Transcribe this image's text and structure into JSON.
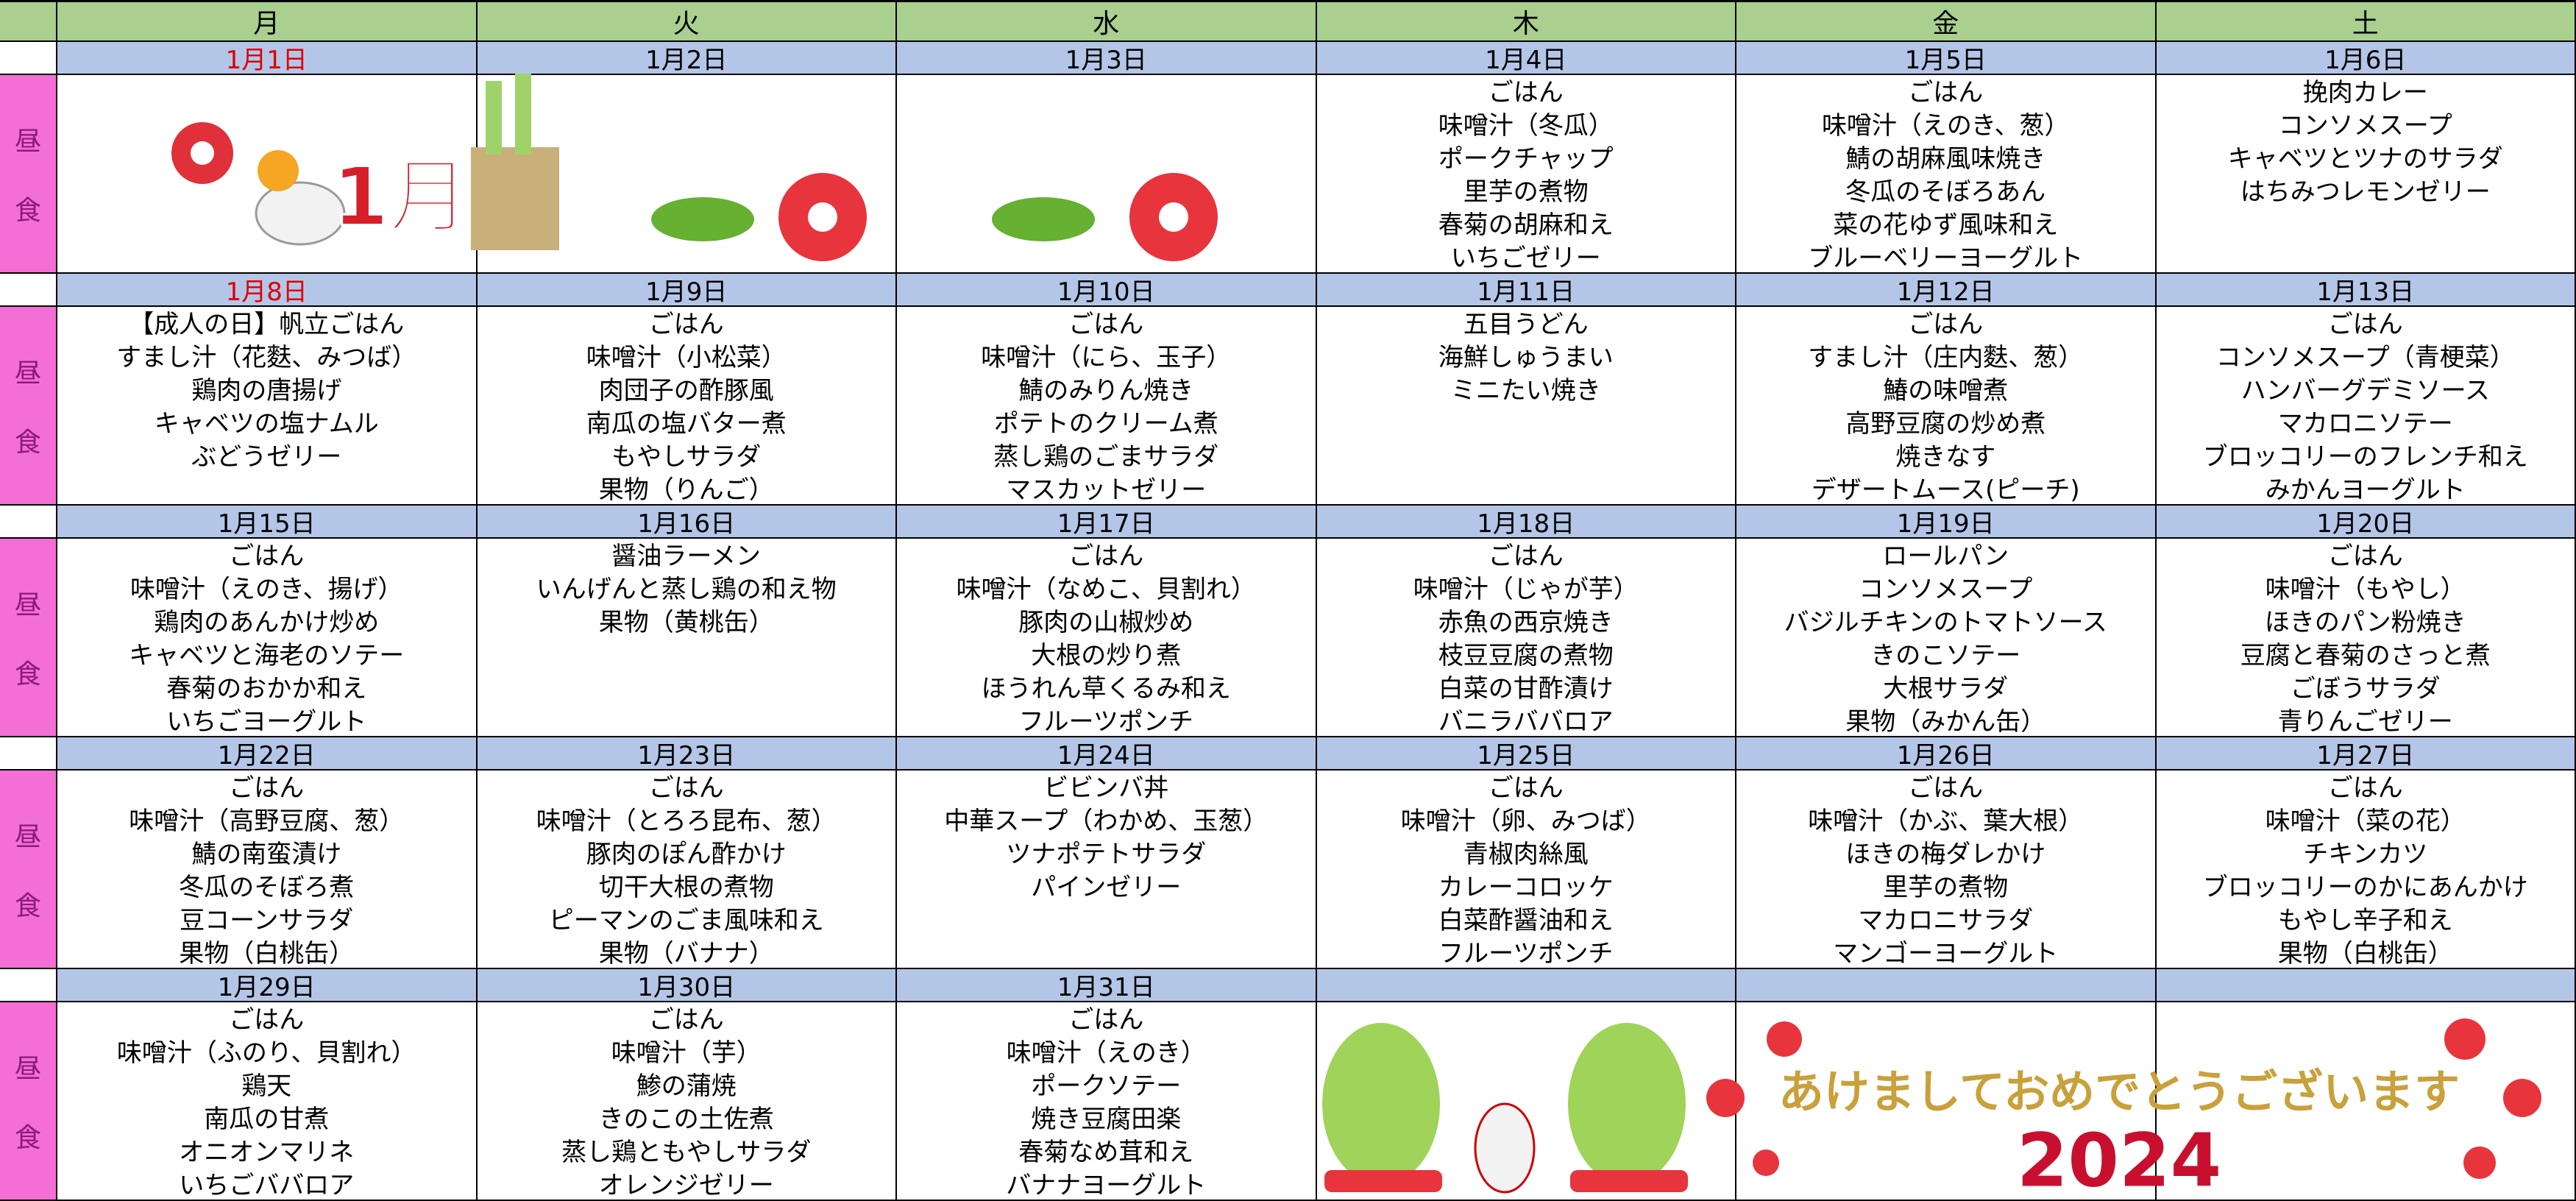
{
  "weekdays": [
    "月",
    "火",
    "水",
    "木",
    "金",
    "土"
  ],
  "lunch_label": [
    "昼",
    "食"
  ],
  "decoration": {
    "month_text": "1月",
    "greeting": "あけましておめでとうございます",
    "year": "2024"
  },
  "weeks": [
    {
      "days": [
        {
          "date": "1月1日",
          "holiday": true
        },
        {
          "date": "1月2日"
        },
        {
          "date": "1月3日"
        },
        {
          "date": "1月4日",
          "menu": [
            "ごはん",
            "味噌汁（冬瓜）",
            "ポークチャップ",
            "里芋の煮物",
            "春菊の胡麻和え",
            "いちごゼリー"
          ]
        },
        {
          "date": "1月5日",
          "menu": [
            "ごはん",
            "味噌汁（えのき、葱）",
            "鯖の胡麻風味焼き",
            "冬瓜のそぼろあん",
            "菜の花ゆず風味和え",
            "ブルーベリーヨーグルト"
          ]
        },
        {
          "date": "1月6日",
          "menu": [
            "挽肉カレー",
            "コンソメスープ",
            "キャベツとツナのサラダ",
            "はちみつレモンゼリー"
          ]
        }
      ]
    },
    {
      "days": [
        {
          "date": "1月8日",
          "holiday": true,
          "menu": [
            "【成人の日】帆立ごはん",
            "すまし汁（花麩、みつば）",
            "鶏肉の唐揚げ",
            "キャベツの塩ナムル",
            "ぶどうゼリー"
          ]
        },
        {
          "date": "1月9日",
          "menu": [
            "ごはん",
            "味噌汁（小松菜）",
            "肉団子の酢豚風",
            "南瓜の塩バター煮",
            "もやしサラダ",
            "果物（りんご）"
          ]
        },
        {
          "date": "1月10日",
          "menu": [
            "ごはん",
            "味噌汁（にら、玉子）",
            "鯖のみりん焼き",
            "ポテトのクリーム煮",
            "蒸し鶏のごまサラダ",
            "マスカットゼリー"
          ]
        },
        {
          "date": "1月11日",
          "menu": [
            "五目うどん",
            "海鮮しゅうまい",
            "ミニたい焼き"
          ]
        },
        {
          "date": "1月12日",
          "menu": [
            "ごはん",
            "すまし汁（庄内麩、葱）",
            "鰆の味噌煮",
            "高野豆腐の炒め煮",
            "焼きなす",
            "デザートムース(ピーチ)"
          ]
        },
        {
          "date": "1月13日",
          "menu": [
            "ごはん",
            "コンソメスープ（青梗菜）",
            "ハンバーグデミソース",
            "マカロニソテー",
            "ブロッコリーのフレンチ和え",
            "みかんヨーグルト"
          ]
        }
      ]
    },
    {
      "days": [
        {
          "date": "1月15日",
          "menu": [
            "ごはん",
            "味噌汁（えのき、揚げ）",
            "鶏肉のあんかけ炒め",
            "キャベツと海老のソテー",
            "春菊のおかか和え",
            "いちごヨーグルト"
          ]
        },
        {
          "date": "1月16日",
          "menu": [
            "醤油ラーメン",
            "いんげんと蒸し鶏の和え物",
            "果物（黄桃缶）"
          ]
        },
        {
          "date": "1月17日",
          "menu": [
            "ごはん",
            "味噌汁（なめこ、貝割れ）",
            "豚肉の山椒炒め",
            "大根の炒り煮",
            "ほうれん草くるみ和え",
            "フルーツポンチ"
          ]
        },
        {
          "date": "1月18日",
          "menu": [
            "ごはん",
            "味噌汁（じゃが芋）",
            "赤魚の西京焼き",
            "枝豆豆腐の煮物",
            "白菜の甘酢漬け",
            "バニラババロア"
          ]
        },
        {
          "date": "1月19日",
          "menu": [
            "ロールパン",
            "コンソメスープ",
            "バジルチキンのトマトソース",
            "きのこソテー",
            "大根サラダ",
            "果物（みかん缶）"
          ]
        },
        {
          "date": "1月20日",
          "menu": [
            "ごはん",
            "味噌汁（もやし）",
            "ほきのパン粉焼き",
            "豆腐と春菊のさっと煮",
            "ごぼうサラダ",
            "青りんごゼリー"
          ]
        }
      ]
    },
    {
      "days": [
        {
          "date": "1月22日",
          "menu": [
            "ごはん",
            "味噌汁（高野豆腐、葱）",
            "鯖の南蛮漬け",
            "冬瓜のそぼろ煮",
            "豆コーンサラダ",
            "果物（白桃缶）"
          ]
        },
        {
          "date": "1月23日",
          "menu": [
            "ごはん",
            "味噌汁（とろろ昆布、葱）",
            "豚肉のぽん酢かけ",
            "切干大根の煮物",
            "ピーマンのごま風味和え",
            "果物（バナナ）"
          ]
        },
        {
          "date": "1月24日",
          "menu": [
            "ビビンバ丼",
            "中華スープ（わかめ、玉葱）",
            "ツナポテトサラダ",
            "パインゼリー"
          ]
        },
        {
          "date": "1月25日",
          "menu": [
            "ごはん",
            "味噌汁（卵、みつば）",
            "青椒肉絲風",
            "カレーコロッケ",
            "白菜酢醤油和え",
            "フルーツポンチ"
          ]
        },
        {
          "date": "1月26日",
          "menu": [
            "ごはん",
            "味噌汁（かぶ、葉大根）",
            "ほきの梅ダレかけ",
            "里芋の煮物",
            "マカロニサラダ",
            "マンゴーヨーグルト"
          ]
        },
        {
          "date": "1月27日",
          "menu": [
            "ごはん",
            "味噌汁（菜の花）",
            "チキンカツ",
            "ブロッコリーのかにあんかけ",
            "もやし辛子和え",
            "果物（白桃缶）"
          ]
        }
      ]
    },
    {
      "days": [
        {
          "date": "1月29日",
          "menu": [
            "ごはん",
            "味噌汁（ふのり、貝割れ）",
            "鶏天",
            "南瓜の甘煮",
            "オニオンマリネ",
            "いちごババロア"
          ]
        },
        {
          "date": "1月30日",
          "menu": [
            "ごはん",
            "味噌汁（芋）",
            "鯵の蒲焼",
            "きのこの土佐煮",
            "蒸し鶏ともやしサラダ",
            "オレンジゼリー"
          ]
        },
        {
          "date": "1月31日",
          "menu": [
            "ごはん",
            "味噌汁（えのき）",
            "ポークソテー",
            "焼き豆腐田楽",
            "春菊なめ茸和え",
            "バナナヨーグルト"
          ]
        }
      ]
    }
  ]
}
